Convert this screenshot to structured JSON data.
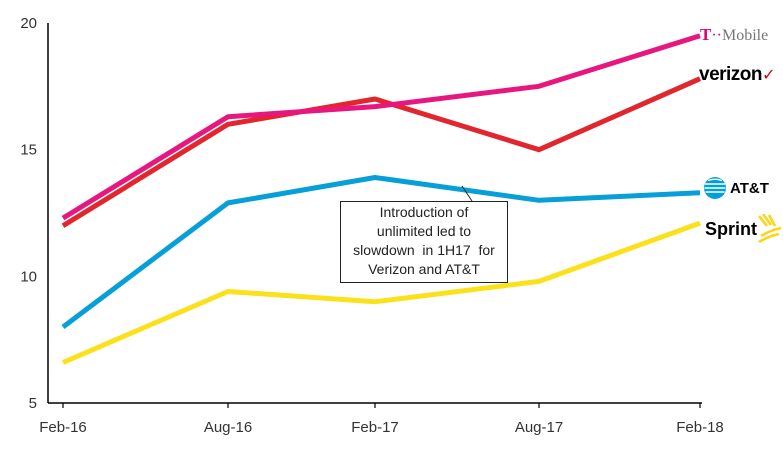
{
  "chart_data": {
    "type": "line",
    "categories": [
      "Feb-16",
      "Aug-16",
      "Feb-17",
      "Aug-17",
      "Feb-18"
    ],
    "ylim": [
      5,
      20
    ],
    "yticks": [
      5,
      10,
      15,
      20
    ],
    "grid": false,
    "series": [
      {
        "name": "T-Mobile",
        "color": "#e8177f",
        "values": [
          12.3,
          16.3,
          16.7,
          17.5,
          19.5
        ]
      },
      {
        "name": "Verizon",
        "color": "#e1262d",
        "values": [
          12.0,
          16.0,
          17.0,
          15.0,
          17.8
        ]
      },
      {
        "name": "AT&T",
        "color": "#079fd7",
        "values": [
          8.0,
          12.9,
          13.9,
          13.0,
          13.3
        ]
      },
      {
        "name": "Sprint",
        "color": "#fbe11b",
        "values": [
          6.6,
          9.4,
          9.0,
          9.8,
          12.1
        ]
      }
    ],
    "annotation": {
      "lines": [
        "Introduction of",
        "unlimited led to",
        "slowdown  in 1H17  for",
        "Verizon and AT&T"
      ]
    }
  },
  "logos": {
    "tmobile": {
      "t": "T",
      "dots": "··",
      "rest": "Mobile"
    },
    "verizon": {
      "text": "verizon",
      "mark": "✓"
    },
    "att": {
      "text": "AT&T",
      "icon": "globe-icon"
    },
    "sprint": {
      "text": "Sprint",
      "icon": "sprint-burst-icon"
    }
  }
}
